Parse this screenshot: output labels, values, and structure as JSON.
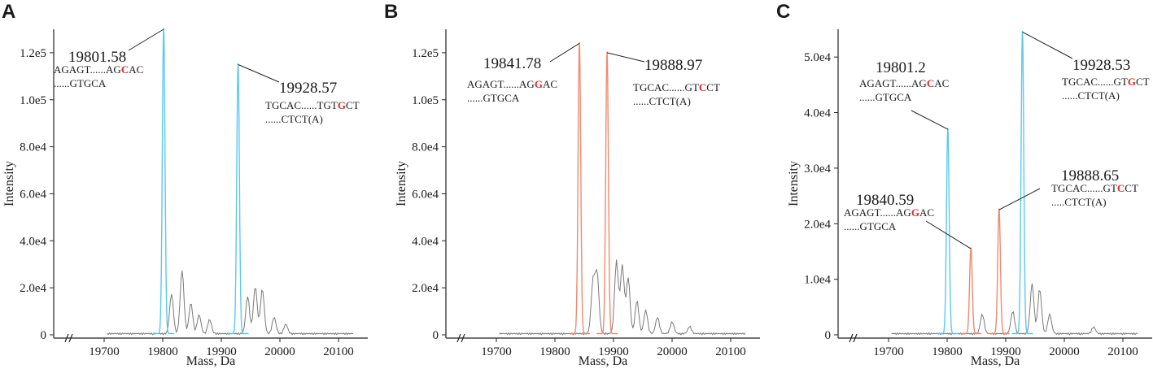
{
  "chart_data": [
    {
      "panel": "A",
      "type": "line",
      "xlabel": "Mass, Da",
      "ylabel": "Intensity",
      "xlim": [
        19650,
        20150
      ],
      "ylim": [
        0,
        130000
      ],
      "xticks": [
        19700,
        19800,
        19900,
        20000,
        20100
      ],
      "xtick_labels": [
        "19700",
        "19800",
        "19900",
        "20000",
        "20100"
      ],
      "yticks": [
        0,
        20000,
        40000,
        60000,
        80000,
        100000,
        120000
      ],
      "ytick_labels": [
        "0",
        "2.0e4",
        "4.0e4",
        "6.0e4",
        "8.0e4",
        "1.0e5",
        "1.2e5"
      ],
      "colors": {
        "peak": "#5bc8f0",
        "base": "#7a7a7a"
      },
      "peaks": [
        {
          "mass": 19801.58,
          "intensity": 130000,
          "color": "peak"
        },
        {
          "mass": 19928.57,
          "intensity": 115000,
          "color": "peak"
        }
      ],
      "minor_peaks": [
        {
          "mass": 19815,
          "intensity": 17000
        },
        {
          "mass": 19833,
          "intensity": 27000
        },
        {
          "mass": 19848,
          "intensity": 13000
        },
        {
          "mass": 19862,
          "intensity": 8000
        },
        {
          "mass": 19880,
          "intensity": 6000
        },
        {
          "mass": 19945,
          "intensity": 16000
        },
        {
          "mass": 19958,
          "intensity": 20000
        },
        {
          "mass": 19970,
          "intensity": 19000
        },
        {
          "mass": 19990,
          "intensity": 7000
        },
        {
          "mass": 20010,
          "intensity": 4000
        }
      ],
      "annotations": [
        {
          "label": "19801.58",
          "seq1": [
            "AGAGT......AG",
            "C",
            "AC"
          ],
          "seq2": "......GTGCA"
        },
        {
          "label": "19928.57",
          "seq1": [
            "TGCAC......TGT",
            "G",
            "CT"
          ],
          "seq2": "......CTCT(A)"
        }
      ]
    },
    {
      "panel": "B",
      "type": "line",
      "xlabel": "Mass, Da",
      "ylabel": "Intensity",
      "xlim": [
        19650,
        20150
      ],
      "ylim": [
        0,
        130000
      ],
      "xticks": [
        19700,
        19800,
        19900,
        20000,
        20100
      ],
      "xtick_labels": [
        "19700",
        "19800",
        "19900",
        "20000",
        "20100"
      ],
      "yticks": [
        0,
        20000,
        40000,
        60000,
        80000,
        100000,
        120000
      ],
      "ytick_labels": [
        "0",
        "2.0e4",
        "4.0e4",
        "6.0e4",
        "8.0e4",
        "1.0e5",
        "1.2e5"
      ],
      "colors": {
        "peak": "#f08a70",
        "base": "#7a7a7a"
      },
      "peaks": [
        {
          "mass": 19841.78,
          "intensity": 124000,
          "color": "peak"
        },
        {
          "mass": 19888.97,
          "intensity": 120000,
          "color": "peak"
        }
      ],
      "minor_peaks": [
        {
          "mass": 19865,
          "intensity": 22000
        },
        {
          "mass": 19872,
          "intensity": 25000
        },
        {
          "mass": 19905,
          "intensity": 31000
        },
        {
          "mass": 19915,
          "intensity": 29000
        },
        {
          "mass": 19925,
          "intensity": 24000
        },
        {
          "mass": 19940,
          "intensity": 14000
        },
        {
          "mass": 19955,
          "intensity": 10000
        },
        {
          "mass": 19975,
          "intensity": 7000
        },
        {
          "mass": 20000,
          "intensity": 5000
        },
        {
          "mass": 20030,
          "intensity": 3000
        }
      ],
      "annotations": [
        {
          "label": "19841.78",
          "seq1": [
            "AGAGT......AG",
            "G",
            "AC"
          ],
          "seq2": "......GTGCA"
        },
        {
          "label": "19888.97",
          "seq1": [
            "TGCAC......GT",
            "C",
            "CT"
          ],
          "seq2": "......CTCT(A)"
        }
      ]
    },
    {
      "panel": "C",
      "type": "line",
      "xlabel": "Mass, Da",
      "ylabel": "Intensity",
      "xlim": [
        19650,
        20150
      ],
      "ylim": [
        0,
        55000
      ],
      "xticks": [
        19700,
        19800,
        19900,
        20000,
        20100
      ],
      "xtick_labels": [
        "19700",
        "19800",
        "19900",
        "20000",
        "20100"
      ],
      "yticks": [
        0,
        10000,
        20000,
        30000,
        40000,
        50000
      ],
      "ytick_labels": [
        "0",
        "1.0e4",
        "2.0e4",
        "3.0e4",
        "4.0e4",
        "5.0e4"
      ],
      "colors": {
        "peak": "#5bc8f0",
        "peak2": "#f08a70",
        "base": "#7a7a7a"
      },
      "peaks": [
        {
          "mass": 19801.2,
          "intensity": 37000,
          "color": "peak"
        },
        {
          "mass": 19840.59,
          "intensity": 15500,
          "color": "peak2"
        },
        {
          "mass": 19888.65,
          "intensity": 22500,
          "color": "peak2"
        },
        {
          "mass": 19928.53,
          "intensity": 54500,
          "color": "peak"
        }
      ],
      "minor_peaks": [
        {
          "mass": 19860,
          "intensity": 3500
        },
        {
          "mass": 19912,
          "intensity": 4000
        },
        {
          "mass": 19945,
          "intensity": 9000
        },
        {
          "mass": 19958,
          "intensity": 8000
        },
        {
          "mass": 19975,
          "intensity": 3500
        },
        {
          "mass": 20050,
          "intensity": 1200
        }
      ],
      "annotations": [
        {
          "label": "19801.2",
          "seq1": [
            "AGAGT......AG",
            "C",
            "AC"
          ],
          "seq2": "......GTGCA"
        },
        {
          "label": "19928.53",
          "seq1": [
            "TGCAC......GT",
            "G",
            "CT"
          ],
          "seq2": "......CTCT(A)"
        },
        {
          "label": "19840.59",
          "seq1": [
            "AGAGT......AG",
            "G",
            "AC"
          ],
          "seq2": "......GTGCA"
        },
        {
          "label": "19888.65",
          "seq1": [
            "TGCAC......GT",
            "C",
            "CT"
          ],
          "seq2": ".....CTCT(A)"
        }
      ]
    }
  ]
}
